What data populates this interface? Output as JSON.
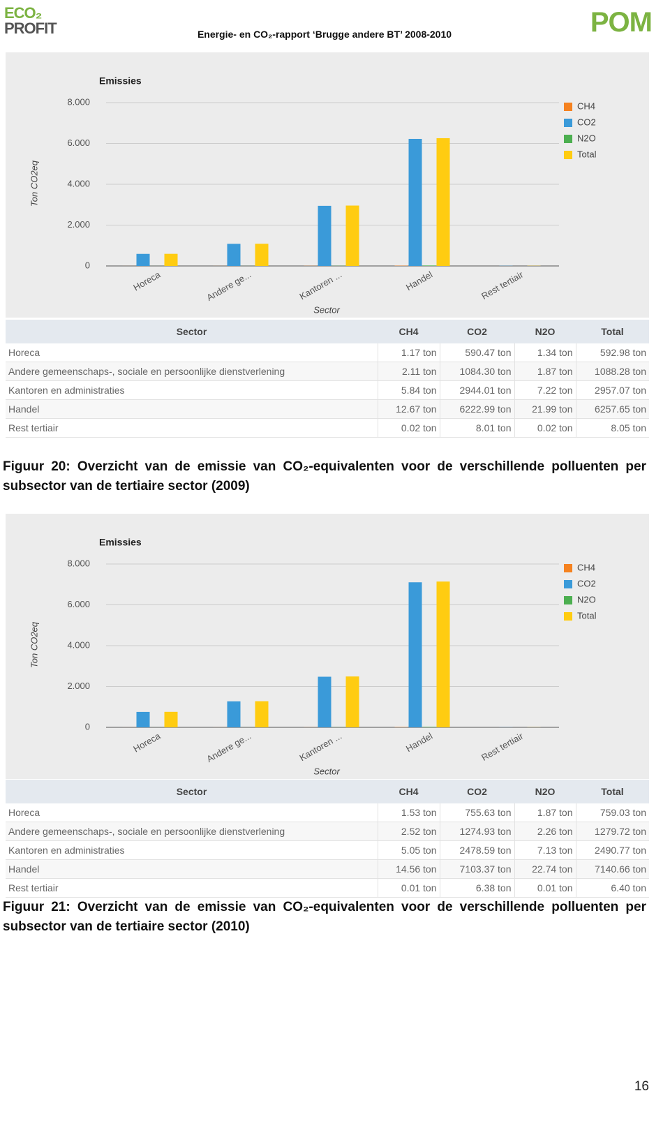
{
  "header": {
    "logo_left": [
      "ECO₂",
      "PROFIT"
    ],
    "title": "Energie- en CO₂-rapport ‘Brugge andere BT’ 2008-2010",
    "logo_right": "POM"
  },
  "figures": [
    {
      "chart": {
        "type": "bar",
        "title": "Emissies",
        "y_label": "Ton CO2eq",
        "x_label": "Sector",
        "categories": [
          "Horeca",
          "Andere ge...",
          "Kantoren ...",
          "Handel",
          "Rest tertiair"
        ],
        "series": [
          {
            "name": "CH4",
            "color": "#f58220",
            "values": [
              1.17,
              2.11,
              5.84,
              12.67,
              0.02
            ]
          },
          {
            "name": "CO2",
            "color": "#3a9ad9",
            "values": [
              590.47,
              1084.3,
              2944.01,
              6222.99,
              8.01
            ]
          },
          {
            "name": "N2O",
            "color": "#4caf50",
            "values": [
              1.34,
              1.87,
              7.22,
              21.99,
              0.02
            ]
          },
          {
            "name": "Total",
            "color": "#ffcc11",
            "values": [
              592.98,
              1088.28,
              2957.07,
              6257.65,
              8.05
            ]
          }
        ],
        "ylim": [
          0,
          8000
        ],
        "yticks": [
          0,
          {
            "value": 2000,
            "label": "2.000"
          },
          {
            "value": 4000,
            "label": "4.000"
          },
          {
            "value": 6000,
            "label": "6.000"
          },
          {
            "value": 8000,
            "label": "8.000"
          }
        ],
        "grid": true,
        "legend": "right"
      },
      "table": {
        "header": [
          "Sector",
          "CH4",
          "CO2",
          "N2O",
          "Total"
        ],
        "rows": [
          [
            "Horeca",
            "1.17 ton",
            "590.47 ton",
            "1.34 ton",
            "592.98 ton"
          ],
          [
            "Andere gemeenschaps-, sociale en persoonlijke dienstverlening",
            "2.11 ton",
            "1084.30 ton",
            "1.87 ton",
            "1088.28 ton"
          ],
          [
            "Kantoren en administraties",
            "5.84 ton",
            "2944.01 ton",
            "7.22 ton",
            "2957.07 ton"
          ],
          [
            "Handel",
            "12.67 ton",
            "6222.99 ton",
            "21.99 ton",
            "6257.65 ton"
          ],
          [
            "Rest tertiair",
            "0.02 ton",
            "8.01 ton",
            "0.02 ton",
            "8.05 ton"
          ]
        ]
      },
      "caption": "Figuur 20: Overzicht van de emissie van CO₂-equivalenten voor de verschillende polluenten per subsector van de tertiaire sector (2009)"
    },
    {
      "chart": {
        "type": "bar",
        "title": "Emissies",
        "y_label": "Ton CO2eq",
        "x_label": "Sector",
        "categories": [
          "Horeca",
          "Andere ge...",
          "Kantoren ...",
          "Handel",
          "Rest tertiair"
        ],
        "series": [
          {
            "name": "CH4",
            "color": "#f58220",
            "values": [
              1.53,
              2.52,
              5.05,
              14.56,
              0.01
            ]
          },
          {
            "name": "CO2",
            "color": "#3a9ad9",
            "values": [
              755.63,
              1274.93,
              2478.59,
              7103.37,
              6.38
            ]
          },
          {
            "name": "N2O",
            "color": "#4caf50",
            "values": [
              1.87,
              2.26,
              7.13,
              22.74,
              0.01
            ]
          },
          {
            "name": "Total",
            "color": "#ffcc11",
            "values": [
              759.03,
              1279.72,
              2490.77,
              7140.66,
              6.4
            ]
          }
        ],
        "ylim": [
          0,
          8000
        ],
        "yticks": [
          0,
          {
            "value": 2000,
            "label": "2.000"
          },
          {
            "value": 4000,
            "label": "4.000"
          },
          {
            "value": 6000,
            "label": "6.000"
          },
          {
            "value": 8000,
            "label": "8.000"
          }
        ],
        "grid": true,
        "legend": "right"
      },
      "table": {
        "header": [
          "Sector",
          "CH4",
          "CO2",
          "N2O",
          "Total"
        ],
        "rows": [
          [
            "Horeca",
            "1.53 ton",
            "755.63 ton",
            "1.87 ton",
            "759.03 ton"
          ],
          [
            "Andere gemeenschaps-, sociale en persoonlijke dienstverlening",
            "2.52 ton",
            "1274.93 ton",
            "2.26 ton",
            "1279.72 ton"
          ],
          [
            "Kantoren en administraties",
            "5.05 ton",
            "2478.59 ton",
            "7.13 ton",
            "2490.77 ton"
          ],
          [
            "Handel",
            "14.56 ton",
            "7103.37 ton",
            "22.74 ton",
            "7140.66 ton"
          ],
          [
            "Rest tertiair",
            "0.01 ton",
            "6.38 ton",
            "0.01 ton",
            "6.40 ton"
          ]
        ]
      },
      "caption": "Figuur 21: Overzicht van de emissie van CO₂-equivalenten voor de verschillende polluenten per subsector van de tertiaire sector (2010)"
    }
  ],
  "page_number": "16"
}
